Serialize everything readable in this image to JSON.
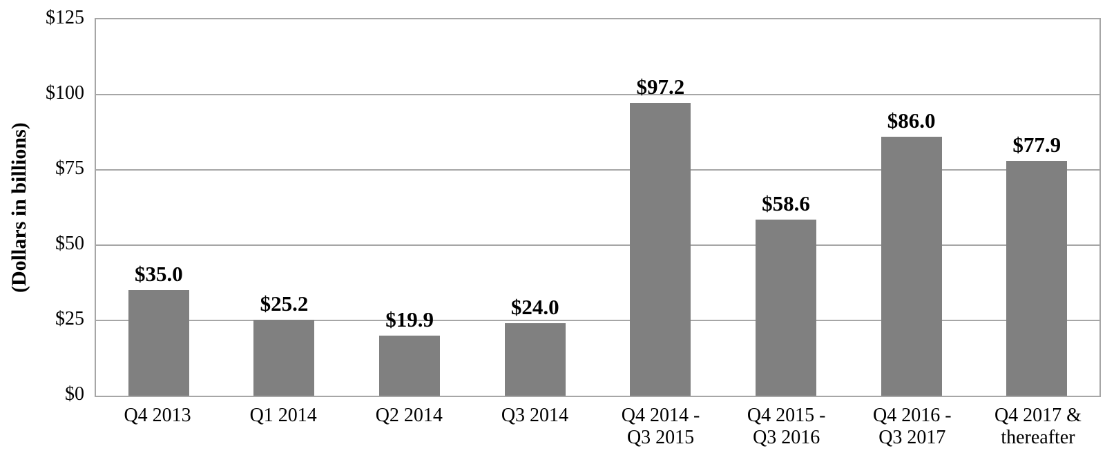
{
  "chart_data": {
    "type": "bar",
    "title": "",
    "xlabel": "",
    "ylabel": "(Dollars in billions)",
    "ylim": [
      0,
      125
    ],
    "ytick_values": [
      0,
      25,
      50,
      75,
      100,
      125
    ],
    "ytick_labels": [
      "$0",
      "$25",
      "$50",
      "$75",
      "$100",
      "$125"
    ],
    "grid": "horizontal",
    "legend": "none",
    "categories": [
      "Q4 2013",
      "Q1 2014",
      "Q2 2014",
      "Q3 2014",
      "Q4 2014 - Q3 2015",
      "Q4 2015 - Q3 2016",
      "Q4 2016 - Q3 2017",
      "Q4 2017 & thereafter"
    ],
    "category_lines": [
      [
        "Q4 2013"
      ],
      [
        "Q1 2014"
      ],
      [
        "Q2 2014"
      ],
      [
        "Q3 2014"
      ],
      [
        "Q4 2014 -",
        "Q3 2015"
      ],
      [
        "Q4 2015 -",
        "Q3 2016"
      ],
      [
        "Q4 2016 -",
        "Q3 2017"
      ],
      [
        "Q4 2017 &",
        "thereafter"
      ]
    ],
    "values": [
      35.0,
      25.2,
      19.9,
      24.0,
      97.2,
      58.6,
      86.0,
      77.9
    ],
    "bar_labels": [
      "$35.0",
      "$25.2",
      "$19.9",
      "$24.0",
      "$97.2",
      "$58.6",
      "$86.0",
      "$77.9"
    ],
    "colors": {
      "bar": "#808080",
      "grid": "#a6a6a6",
      "frame": "#a6a6a6",
      "text": "#000000"
    }
  }
}
